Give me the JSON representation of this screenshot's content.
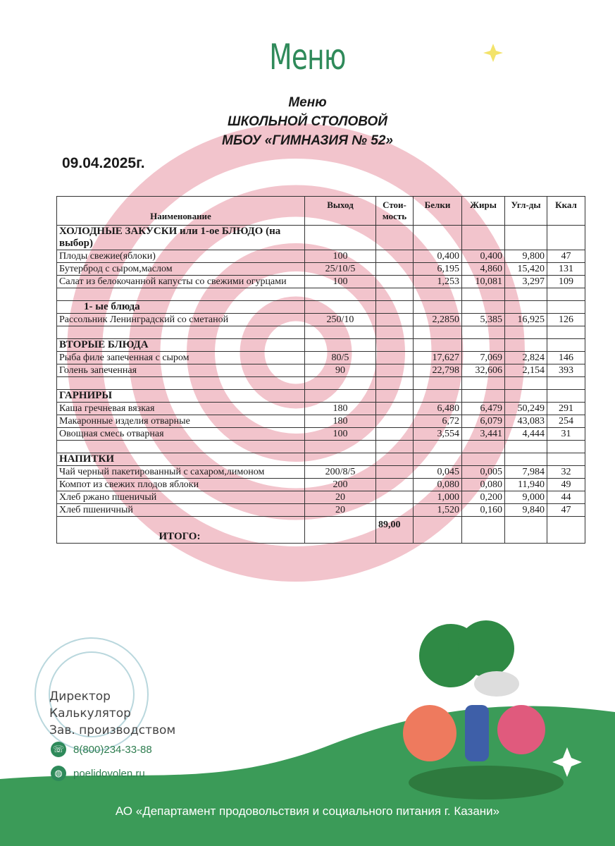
{
  "logo": "Меню",
  "header": {
    "line1": "Меню",
    "line2": "ШКОЛЬНОЙ СТОЛОВОЙ",
    "line3": "МБОУ «ГИМНАЗИЯ № 52»"
  },
  "date": "09.04.2025г.",
  "colors": {
    "accent_green": "#2e8a5a",
    "spiral_pink": "#f2c4cc"
  },
  "table": {
    "columns": [
      "Наименование",
      "Выход",
      "Стои-мость",
      "Белки",
      "Жиры",
      "Угл-ды",
      "Ккал"
    ],
    "rows": [
      {
        "type": "section",
        "name": "ХОЛОДНЫЕ ЗАКУСКИ или 1-ое БЛЮДО (на выбор)"
      },
      {
        "name": "Плоды свежие(яблоки)",
        "out": "100",
        "cost": "",
        "b": "0,400",
        "f": "0,400",
        "c": "9,800",
        "k": "47"
      },
      {
        "name": "Бутерброд с сыром,маслом",
        "out": "25/10/5",
        "cost": "",
        "b": "6,195",
        "f": "4,860",
        "c": "15,420",
        "k": "131"
      },
      {
        "name": "Салат из белокочанной капусты со свежими огурцами",
        "out": "100",
        "cost": "",
        "b": "1,253",
        "f": "10,081",
        "c": "3,297",
        "k": "109"
      },
      {
        "type": "empty"
      },
      {
        "type": "section",
        "name": "1-  ые блюда",
        "indent": true
      },
      {
        "name": "Рассольник Ленинградский со сметаной",
        "out": "250/10",
        "cost": "",
        "b": "2,2850",
        "f": "5,385",
        "c": "16,925",
        "k": "126"
      },
      {
        "type": "empty"
      },
      {
        "type": "section",
        "name": "ВТОРЫЕ БЛЮДА"
      },
      {
        "name": "Рыба филе запеченная с сыром",
        "out": "80/5",
        "cost": "",
        "b": "17,627",
        "f": "7,069",
        "c": "2,824",
        "k": "146"
      },
      {
        "name": "Голень запеченная",
        "out": "90",
        "cost": "",
        "b": "22,798",
        "f": "32,606",
        "c": "2,154",
        "k": "393"
      },
      {
        "type": "empty"
      },
      {
        "type": "section",
        "name": "ГАРНИРЫ"
      },
      {
        "name": "Каша гречневая   вязкая",
        "out": "180",
        "cost": "",
        "b": "6,480",
        "f": "6,479",
        "c": "50,249",
        "k": "291"
      },
      {
        "name": "Макаронные изделия отварные",
        "out": "180",
        "cost": "",
        "b": "6,72",
        "f": "6,079",
        "c": "43,083",
        "k": "254"
      },
      {
        "name": "Овощная смесь отварная",
        "out": "100",
        "cost": "",
        "b": "3,554",
        "f": "3,441",
        "c": "4,444",
        "k": "31"
      },
      {
        "type": "empty"
      },
      {
        "type": "section",
        "name": "НАПИТКИ"
      },
      {
        "name": "Чай черный пакетированный с сахаром,лимоном",
        "out": "200/8/5",
        "cost": "",
        "b": "0,045",
        "f": "0,005",
        "c": "7,984",
        "k": "32"
      },
      {
        "name": "Компот из свежих плодов яблоки",
        "out": "200",
        "cost": "",
        "b": "0,080",
        "f": "0,080",
        "c": "11,940",
        "k": "49"
      },
      {
        "name": "Хлеб ржано пшеничый",
        "out": "20",
        "cost": "",
        "b": "1,000",
        "f": "0,200",
        "c": "9,000",
        "k": "44"
      },
      {
        "name": "Хлеб пшеничный",
        "out": "20",
        "cost": "",
        "b": "1,520",
        "f": "0,160",
        "c": "9,840",
        "k": "47"
      }
    ],
    "total_label": "ИТОГО:",
    "total_cost": "89,00"
  },
  "footer": {
    "roles": [
      "Директор",
      "Калькулятор",
      "Зав. производством"
    ],
    "phone": "8(800)234-33-88",
    "website": "poelidovolen.ru",
    "phone_icon": "phone-icon",
    "web_icon": "globe-icon",
    "organization": "АО «Департамент продовольствия и социального питания г. Казани»"
  }
}
